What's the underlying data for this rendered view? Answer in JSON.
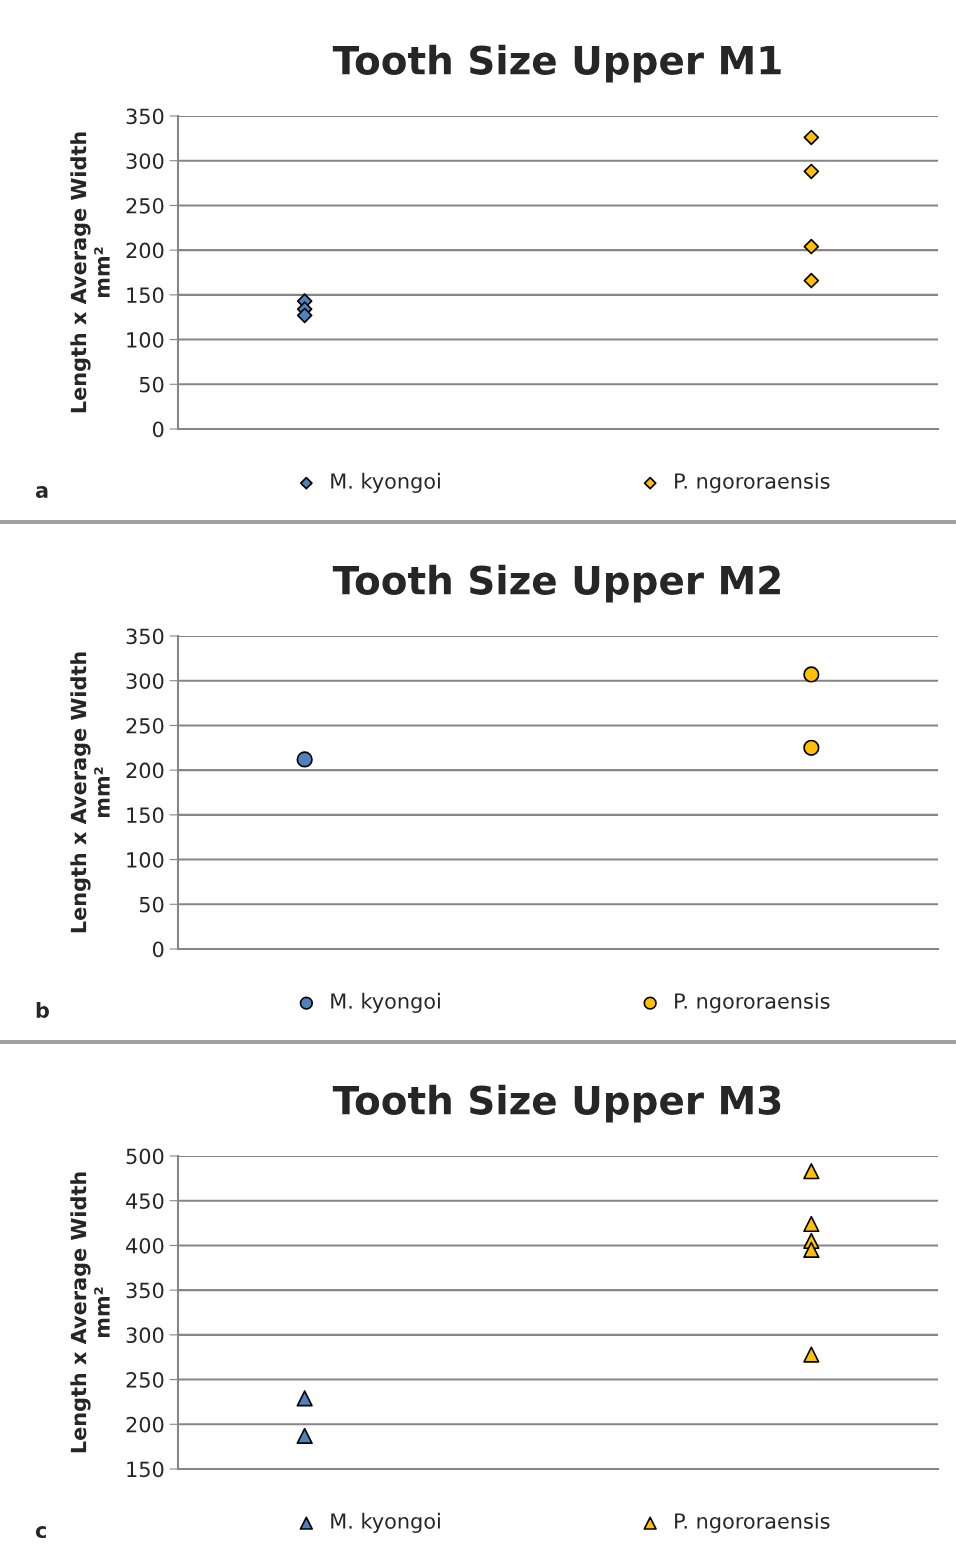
{
  "chart_data": [
    {
      "type": "scatter",
      "title": "Tooth Size Upper M1",
      "ylabel": "Length x Average Width\nmm²",
      "categories": [
        null,
        null
      ],
      "ylim": [
        0,
        350
      ],
      "yticks": [
        0,
        50,
        100,
        150,
        200,
        250,
        300,
        350
      ],
      "tick_labels": "y",
      "grid": "y",
      "legend": "bottom",
      "marker": "diamond",
      "annotations": [
        "a"
      ],
      "series": [
        {
          "name": "M. kyongoi",
          "color": "#4f81bd",
          "values": [
            143,
            null
          ]
        },
        {
          "color": "#4f81bd",
          "values": [
            134,
            null
          ]
        },
        {
          "color": "#4f81bd",
          "values": [
            127,
            null
          ]
        },
        {
          "name": "P. ngororaensis",
          "color": "#ffc000",
          "values": [
            null,
            326
          ]
        },
        {
          "color": "#ffc000",
          "values": [
            null,
            288
          ]
        },
        {
          "color": "#ffc000",
          "values": [
            null,
            204
          ]
        },
        {
          "color": "#ffc000",
          "values": [
            null,
            166
          ]
        }
      ]
    },
    {
      "type": "scatter",
      "title": "Tooth Size Upper M2",
      "ylabel": "Length x Average Width\nmm²",
      "categories": [
        null,
        null
      ],
      "ylim": [
        0,
        350
      ],
      "yticks": [
        0,
        50,
        100,
        150,
        200,
        250,
        300,
        350
      ],
      "tick_labels": "y",
      "grid": "y",
      "legend": "bottom",
      "marker": "circle",
      "annotations": [
        "b"
      ],
      "series": [
        {
          "name": "M. kyongoi",
          "color": "#4f81bd",
          "values": [
            212,
            null
          ]
        },
        {
          "name": "P. ngororaensis",
          "color": "#ffc000",
          "values": [
            null,
            307
          ]
        },
        {
          "color": "#ffc000",
          "values": [
            null,
            225
          ]
        }
      ]
    },
    {
      "type": "scatter",
      "title": "Tooth Size Upper M3",
      "ylabel": "Length x Average Width\nmm²",
      "categories": [
        null,
        null
      ],
      "ylim": [
        150,
        500
      ],
      "yticks": [
        150,
        200,
        250,
        300,
        350,
        400,
        450,
        500
      ],
      "tick_labels": "y",
      "grid": "y",
      "legend": "bottom",
      "marker": "triangle",
      "annotations": [
        "c"
      ],
      "series": [
        {
          "name": "M. kyongoi",
          "color": "#4f81bd",
          "values": [
            229,
            null
          ]
        },
        {
          "color": "#4f81bd",
          "values": [
            187,
            null
          ]
        },
        {
          "name": "P. ngororaensis",
          "color": "#ffc000",
          "values": [
            null,
            483
          ]
        },
        {
          "color": "#ffc000",
          "values": [
            null,
            424
          ]
        },
        {
          "color": "#ffc000",
          "values": [
            null,
            405
          ]
        },
        {
          "color": "#ffc000",
          "values": [
            null,
            395
          ]
        },
        {
          "color": "#ffc000",
          "values": [
            null,
            278
          ]
        }
      ]
    }
  ]
}
